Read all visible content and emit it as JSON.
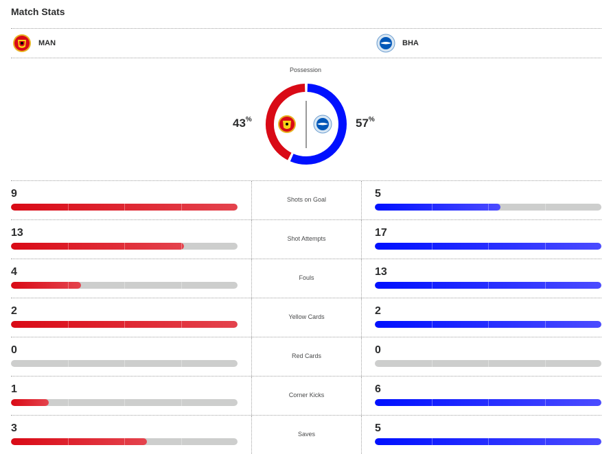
{
  "header": {
    "title": "Match Stats"
  },
  "teams": {
    "home": {
      "abbr": "MAN",
      "crest_icon": "manchester-united-crest-icon",
      "color": "#d90a16"
    },
    "away": {
      "abbr": "BHA",
      "crest_icon": "brighton-crest-icon",
      "color": "#0010ff"
    }
  },
  "possession": {
    "label": "Possession",
    "home_pct": 43,
    "away_pct": 57,
    "home_text": "43",
    "away_text": "57",
    "pct_sign": "%"
  },
  "stats": [
    {
      "label": "Shots on Goal",
      "home": 9,
      "away": 5,
      "home_text": "9",
      "away_text": "5"
    },
    {
      "label": "Shot Attempts",
      "home": 13,
      "away": 17,
      "home_text": "13",
      "away_text": "17"
    },
    {
      "label": "Fouls",
      "home": 4,
      "away": 13,
      "home_text": "4",
      "away_text": "13"
    },
    {
      "label": "Yellow Cards",
      "home": 2,
      "away": 2,
      "home_text": "2",
      "away_text": "2"
    },
    {
      "label": "Red Cards",
      "home": 0,
      "away": 0,
      "home_text": "0",
      "away_text": "0"
    },
    {
      "label": "Corner Kicks",
      "home": 1,
      "away": 6,
      "home_text": "1",
      "away_text": "6"
    },
    {
      "label": "Saves",
      "home": 3,
      "away": 5,
      "home_text": "3",
      "away_text": "5"
    }
  ]
}
